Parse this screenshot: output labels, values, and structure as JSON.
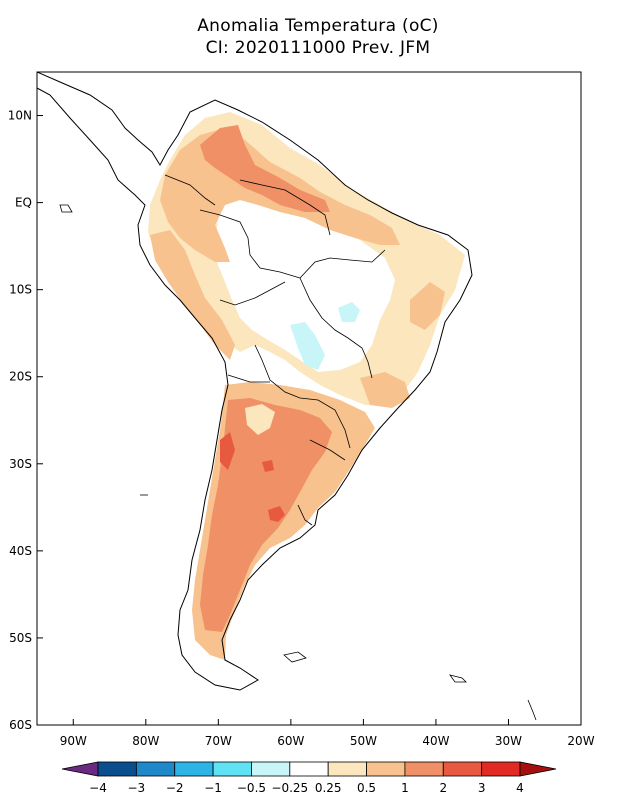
{
  "title": {
    "line1": "Anomalia Temperatura (oC)",
    "line2": "CI: 2020111000 Prev. JFM"
  },
  "map": {
    "lat_labels": [
      "10N",
      "EQ",
      "10S",
      "20S",
      "30S",
      "40S",
      "50S",
      "60S"
    ],
    "lat_values": [
      10,
      0,
      -10,
      -20,
      -30,
      -40,
      -50,
      -60
    ],
    "lon_labels": [
      "90W",
      "80W",
      "70W",
      "60W",
      "50W",
      "40W",
      "30W",
      "20W"
    ],
    "lon_values": [
      -90,
      -80,
      -70,
      -60,
      -50,
      -40,
      -30,
      -20
    ],
    "lon_range": [
      -95,
      -20
    ],
    "lat_range": [
      -60,
      15
    ],
    "land_outline_color": "#000000"
  },
  "colorbar": {
    "labels": [
      "-4",
      "-3",
      "-2",
      "-1",
      "-0.5",
      "-0.25",
      "0.25",
      "0.5",
      "1",
      "2",
      "3",
      "4"
    ],
    "colors": [
      "#6a2a82",
      "#0b4e8e",
      "#1f88c8",
      "#2cb4e6",
      "#5fe2f4",
      "#c8f6f8",
      "#ffffff",
      "#fbe6bd",
      "#f7c28e",
      "#f09066",
      "#e85a40",
      "#e02a22",
      "#a50f0f"
    ]
  }
}
